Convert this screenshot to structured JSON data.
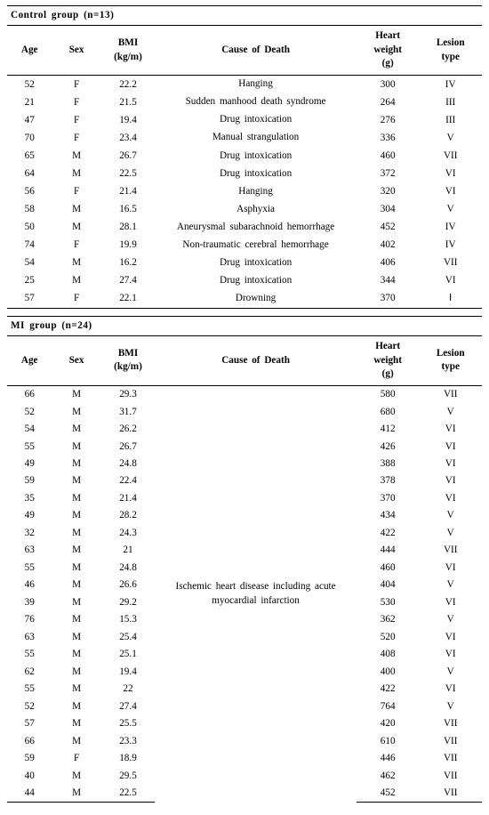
{
  "columns": [
    {
      "key": "age",
      "label": "Age"
    },
    {
      "key": "sex",
      "label": "Sex"
    },
    {
      "key": "bmi",
      "label": "BMI<br>(kg/m)"
    },
    {
      "key": "cause",
      "label": "Cause of Death"
    },
    {
      "key": "hw",
      "label": "Heart<br>weight<br>(g)"
    },
    {
      "key": "lt",
      "label": "Lesion<br>type"
    }
  ],
  "sections": [
    {
      "title": "Control group (n=13)",
      "merged_cause": null,
      "rows": [
        {
          "age": "52",
          "sex": "F",
          "bmi": "22.2",
          "cause": "Hanging",
          "hw": "300",
          "lt": "IV"
        },
        {
          "age": "21",
          "sex": "F",
          "bmi": "21.5",
          "cause": "Sudden manhood death syndrome",
          "hw": "264",
          "lt": "III"
        },
        {
          "age": "47",
          "sex": "F",
          "bmi": "19.4",
          "cause": "Drug intoxication",
          "hw": "276",
          "lt": "III"
        },
        {
          "age": "70",
          "sex": "F",
          "bmi": "23.4",
          "cause": "Manual strangulation",
          "hw": "336",
          "lt": "V"
        },
        {
          "age": "65",
          "sex": "M",
          "bmi": "26.7",
          "cause": "Drug intoxication",
          "hw": "460",
          "lt": "VII"
        },
        {
          "age": "64",
          "sex": "M",
          "bmi": "22.5",
          "cause": "Drug intoxication",
          "hw": "372",
          "lt": "VI"
        },
        {
          "age": "56",
          "sex": "F",
          "bmi": "21.4",
          "cause": "Hanging",
          "hw": "320",
          "lt": "VI"
        },
        {
          "age": "58",
          "sex": "M",
          "bmi": "16.5",
          "cause": "Asphyxia",
          "hw": "304",
          "lt": "V"
        },
        {
          "age": "50",
          "sex": "M",
          "bmi": "28.1",
          "cause": "Aneurysmal subarachnoid hemorrhage",
          "hw": "452",
          "lt": "IV"
        },
        {
          "age": "74",
          "sex": "F",
          "bmi": "19.9",
          "cause": "Non-traumatic cerebral hemorrhage",
          "hw": "402",
          "lt": "IV"
        },
        {
          "age": "54",
          "sex": "M",
          "bmi": "16.2",
          "cause": "Drug intoxication",
          "hw": "406",
          "lt": "VII"
        },
        {
          "age": "25",
          "sex": "M",
          "bmi": "27.4",
          "cause": "Drug intoxication",
          "hw": "344",
          "lt": "VI"
        },
        {
          "age": "57",
          "sex": "F",
          "bmi": "22.1",
          "cause": "Drowning",
          "hw": "370",
          "lt": "Ⅰ"
        }
      ]
    },
    {
      "title": "MI group (n=24)",
      "merged_cause": "Ischemic heart disease including acute<br>myocardial infarction",
      "rows": [
        {
          "age": "66",
          "sex": "M",
          "bmi": "29.3",
          "hw": "580",
          "lt": "VII"
        },
        {
          "age": "52",
          "sex": "M",
          "bmi": "31.7",
          "hw": "680",
          "lt": "V"
        },
        {
          "age": "54",
          "sex": "M",
          "bmi": "26.2",
          "hw": "412",
          "lt": "VI"
        },
        {
          "age": "55",
          "sex": "M",
          "bmi": "26.7",
          "hw": "426",
          "lt": "VI"
        },
        {
          "age": "49",
          "sex": "M",
          "bmi": "24.8",
          "hw": "388",
          "lt": "VI"
        },
        {
          "age": "59",
          "sex": "M",
          "bmi": "22.4",
          "hw": "378",
          "lt": "VI"
        },
        {
          "age": "35",
          "sex": "M",
          "bmi": "21.4",
          "hw": "370",
          "lt": "VI"
        },
        {
          "age": "49",
          "sex": "M",
          "bmi": "28.2",
          "hw": "434",
          "lt": "V"
        },
        {
          "age": "32",
          "sex": "M",
          "bmi": "24.3",
          "hw": "422",
          "lt": "V"
        },
        {
          "age": "63",
          "sex": "M",
          "bmi": "21",
          "hw": "444",
          "lt": "VII"
        },
        {
          "age": "55",
          "sex": "M",
          "bmi": "24.8",
          "hw": "460",
          "lt": "VI"
        },
        {
          "age": "46",
          "sex": "M",
          "bmi": "26.6",
          "hw": "404",
          "lt": "V"
        },
        {
          "age": "39",
          "sex": "M",
          "bmi": "29.2",
          "hw": "530",
          "lt": "VI"
        },
        {
          "age": "76",
          "sex": "M",
          "bmi": "15.3",
          "hw": "362",
          "lt": "V"
        },
        {
          "age": "63",
          "sex": "M",
          "bmi": "25.4",
          "hw": "520",
          "lt": "VI"
        },
        {
          "age": "55",
          "sex": "M",
          "bmi": "25.1",
          "hw": "408",
          "lt": "VI"
        },
        {
          "age": "62",
          "sex": "M",
          "bmi": "19.4",
          "hw": "400",
          "lt": "V"
        },
        {
          "age": "55",
          "sex": "M",
          "bmi": "22",
          "hw": "422",
          "lt": "VI"
        },
        {
          "age": "52",
          "sex": "M",
          "bmi": "27.4",
          "hw": "764",
          "lt": "V"
        },
        {
          "age": "57",
          "sex": "M",
          "bmi": "25.5",
          "hw": "420",
          "lt": "VII"
        },
        {
          "age": "66",
          "sex": "M",
          "bmi": "23.3",
          "hw": "610",
          "lt": "VII"
        },
        {
          "age": "59",
          "sex": "F",
          "bmi": "18.9",
          "hw": "446",
          "lt": "VII"
        },
        {
          "age": "40",
          "sex": "M",
          "bmi": "29.5",
          "hw": "462",
          "lt": "VII"
        },
        {
          "age": "44",
          "sex": "M",
          "bmi": "22.5",
          "hw": "452",
          "lt": "VII"
        }
      ]
    }
  ]
}
